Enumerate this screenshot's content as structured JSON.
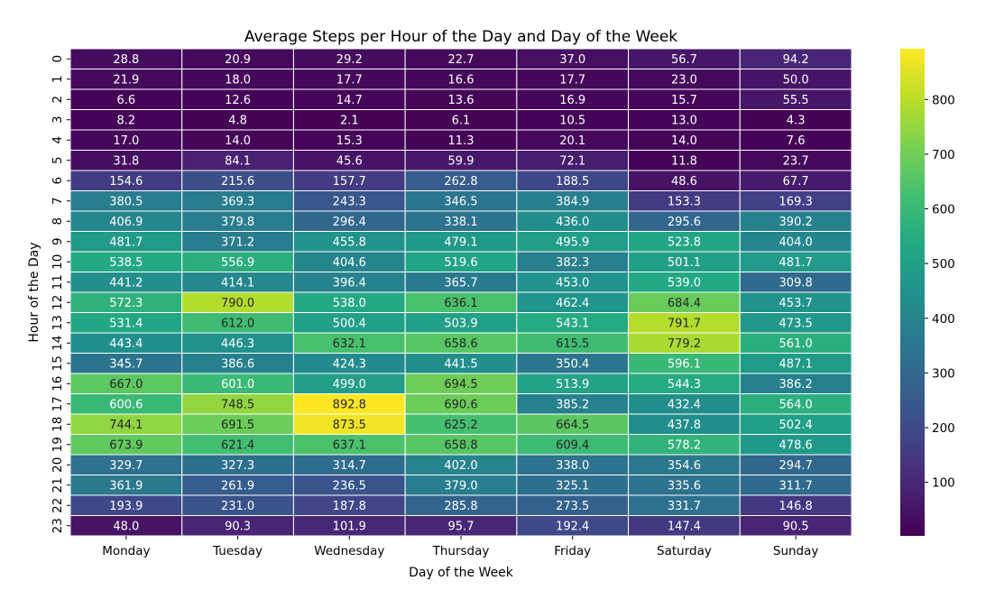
{
  "chart_data": {
    "type": "heatmap",
    "title": "Average Steps per Hour of the Day and Day of the Week",
    "xlabel": "Day of the Week",
    "ylabel": "Hour of the Day",
    "x_categories": [
      "Monday",
      "Tuesday",
      "Wednesday",
      "Thursday",
      "Friday",
      "Saturday",
      "Sunday"
    ],
    "y_categories": [
      "0",
      "1",
      "2",
      "3",
      "4",
      "5",
      "6",
      "7",
      "8",
      "9",
      "10",
      "11",
      "12",
      "13",
      "14",
      "15",
      "16",
      "17",
      "18",
      "19",
      "20",
      "21",
      "22",
      "23"
    ],
    "values": [
      [
        28.8,
        20.9,
        29.2,
        22.7,
        37.0,
        56.7,
        94.2
      ],
      [
        21.9,
        18.0,
        17.7,
        16.6,
        17.7,
        23.0,
        50.0
      ],
      [
        6.6,
        12.6,
        14.7,
        13.6,
        16.9,
        15.7,
        55.5
      ],
      [
        8.2,
        4.8,
        2.1,
        6.1,
        10.5,
        13.0,
        4.3
      ],
      [
        17.0,
        14.0,
        15.3,
        11.3,
        20.1,
        14.0,
        7.6
      ],
      [
        31.8,
        84.1,
        45.6,
        59.9,
        72.1,
        11.8,
        23.7
      ],
      [
        154.6,
        215.6,
        157.7,
        262.8,
        188.5,
        48.6,
        67.7
      ],
      [
        380.5,
        369.3,
        243.3,
        346.5,
        384.9,
        153.3,
        169.3
      ],
      [
        406.9,
        379.8,
        296.4,
        338.1,
        436.0,
        295.6,
        390.2
      ],
      [
        481.7,
        371.2,
        455.8,
        479.1,
        495.9,
        523.8,
        404.0
      ],
      [
        538.5,
        556.9,
        404.6,
        519.6,
        382.3,
        501.1,
        481.7
      ],
      [
        441.2,
        414.1,
        396.4,
        365.7,
        453.0,
        539.0,
        309.8
      ],
      [
        572.3,
        790.0,
        538.0,
        636.1,
        462.4,
        684.4,
        453.7
      ],
      [
        531.4,
        612.0,
        500.4,
        503.9,
        543.1,
        791.7,
        473.5
      ],
      [
        443.4,
        446.3,
        632.1,
        658.6,
        615.5,
        779.2,
        561.0
      ],
      [
        345.7,
        386.6,
        424.3,
        441.5,
        350.4,
        596.1,
        487.1
      ],
      [
        667.0,
        601.0,
        499.0,
        694.5,
        513.9,
        544.3,
        386.2
      ],
      [
        600.6,
        748.5,
        892.8,
        690.6,
        385.2,
        432.4,
        564.0
      ],
      [
        744.1,
        691.5,
        873.5,
        625.2,
        664.5,
        437.8,
        502.4
      ],
      [
        673.9,
        621.4,
        637.1,
        658.8,
        609.4,
        578.2,
        478.6
      ],
      [
        329.7,
        327.3,
        314.7,
        402.0,
        338.0,
        354.6,
        294.7
      ],
      [
        361.9,
        261.9,
        236.5,
        379.0,
        325.1,
        335.6,
        311.7
      ],
      [
        193.9,
        231.0,
        187.8,
        285.8,
        273.5,
        331.7,
        146.8
      ],
      [
        48.0,
        90.3,
        101.9,
        95.7,
        192.4,
        147.4,
        90.5
      ]
    ],
    "colormap": "viridis",
    "value_range": [
      2.1,
      892.8
    ],
    "colorbar_ticks": [
      100,
      200,
      300,
      400,
      500,
      600,
      700,
      800
    ],
    "grid": true
  }
}
